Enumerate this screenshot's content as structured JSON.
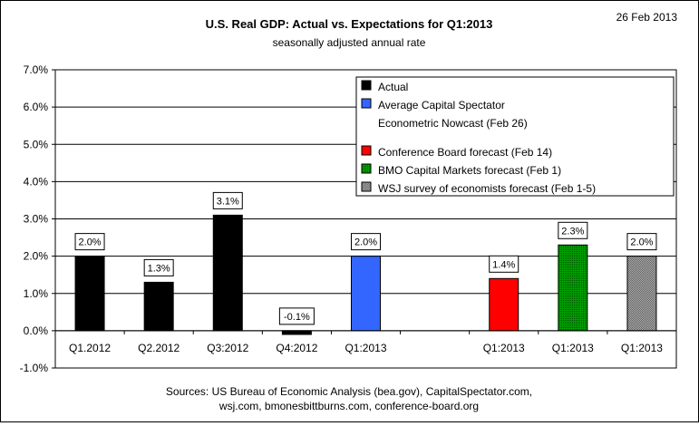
{
  "header": {
    "date": "26 Feb 2013"
  },
  "footer": {
    "line1": "Sources: US Bureau of Economic Analysis (bea.gov), CapitalSpectator.com,",
    "line2": "wsj.com, bmonesbittburns.com, conference-board.org"
  },
  "chart_data": {
    "type": "bar",
    "title": "U.S. Real GDP: Actual vs. Expectations for Q1:2013",
    "subtitle": "seasonally adjusted annual rate",
    "xlabel": "",
    "ylabel": "",
    "ylim": [
      -1.0,
      7.0
    ],
    "yticks": [
      "-1.0%",
      "0.0%",
      "1.0%",
      "2.0%",
      "3.0%",
      "4.0%",
      "5.0%",
      "6.0%",
      "7.0%"
    ],
    "grid": true,
    "legend_position": "top-right",
    "categories": [
      "Q1.2012",
      "Q2.2012",
      "Q3:2012",
      "Q4:2012",
      "Q1:2013",
      "",
      "Q1:2013",
      "Q1:2013",
      "Q1:2013"
    ],
    "bars": [
      {
        "category": "Q1.2012",
        "value": 2.0,
        "label": "2.0%",
        "series": "Actual"
      },
      {
        "category": "Q2.2012",
        "value": 1.3,
        "label": "1.3%",
        "series": "Actual"
      },
      {
        "category": "Q3:2012",
        "value": 3.1,
        "label": "3.1%",
        "series": "Actual"
      },
      {
        "category": "Q4:2012",
        "value": -0.1,
        "label": "-0.1%",
        "series": "Actual"
      },
      {
        "category": "Q1:2013",
        "value": 2.0,
        "label": "2.0%",
        "series": "Average Capital Spectator Econometric Nowcast (Feb 26)"
      },
      {
        "category": "Q1:2013",
        "value": 1.4,
        "label": "1.4%",
        "series": "Conference Board forecast (Feb 14)"
      },
      {
        "category": "Q1:2013",
        "value": 2.3,
        "label": "2.3%",
        "series": "BMO Capital Markets forecast (Feb 1)"
      },
      {
        "category": "Q1:2013",
        "value": 2.0,
        "label": "2.0%",
        "series": "WSJ survey of economists forecast (Feb 1-5)"
      }
    ],
    "bar_slots": [
      0,
      1,
      2,
      3,
      4,
      6,
      7,
      8
    ],
    "series": [
      {
        "name": "Actual",
        "color": "#000000",
        "pattern": "solid"
      },
      {
        "name": "Average Capital Spectator Econometric Nowcast (Feb 26)",
        "legend_lines": [
          "Average Capital Spectator",
          "Econometric Nowcast (Feb 26)"
        ],
        "color": "#3366ff",
        "pattern": "solid"
      },
      {
        "name": "Conference Board forecast (Feb 14)",
        "color": "#ff0000",
        "pattern": "solid"
      },
      {
        "name": "BMO Capital Markets forecast (Feb 1)",
        "color": "#008000",
        "pattern": "dotted"
      },
      {
        "name": "WSJ survey of economists forecast (Feb 1-5)",
        "color": "#808080",
        "pattern": "checker"
      }
    ]
  }
}
